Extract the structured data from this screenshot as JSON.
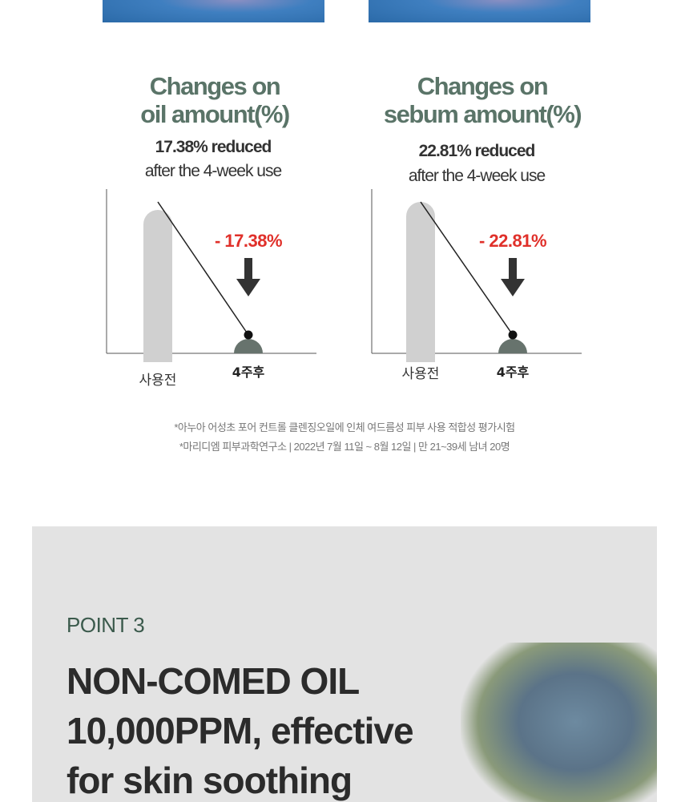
{
  "chart_data": [
    {
      "type": "bar",
      "title": "Changes on oil amount(%)",
      "summary": "17.38% reduced",
      "summary_note": "after the 4-week use",
      "categories": [
        "사용전",
        "4주후"
      ],
      "annotation": "- 17.38%",
      "reduction_percent": 17.38,
      "colors": {
        "before": "#d0d0d0",
        "after": "#67736d",
        "annotation": "#e0302a"
      }
    },
    {
      "type": "bar",
      "title": "Changes on sebum amount(%)",
      "summary": "22.81% reduced",
      "summary_note": "after the 4-week use",
      "categories": [
        "사용전",
        "4주후"
      ],
      "annotation": "- 22.81%",
      "reduction_percent": 22.81,
      "colors": {
        "before": "#d0d0d0",
        "after": "#67736d",
        "annotation": "#e0302a"
      }
    }
  ],
  "titles": [
    [
      "Changes on",
      "oil amount(%)"
    ],
    [
      "Changes on",
      "sebum amount(%)"
    ]
  ],
  "notes": [
    "*아누아 어성초 포어 컨트롤 클렌징오일에 인체 여드름성 피부 사용 적합성 평가시험",
    "*마리디엠 피부과학연구소 |  2022년 7월 11일 ~ 8월 12일 | 만 21~39세 남녀 20명"
  ],
  "point": {
    "label": "POINT 3",
    "headline": [
      "NON-COMED OIL",
      "10,000PPM, effective",
      "for skin soothing"
    ]
  }
}
